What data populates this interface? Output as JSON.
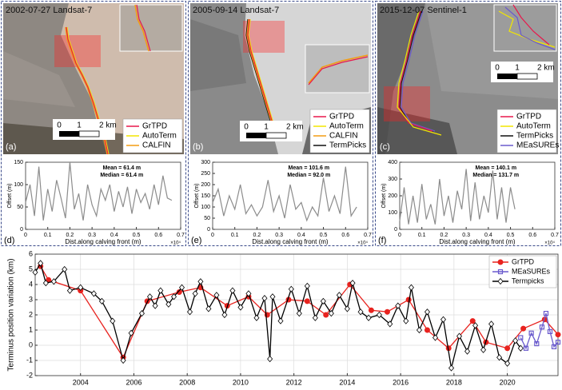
{
  "images": [
    {
      "title": "2002-07-27 Landsat-7",
      "panel": "(a)",
      "scale": [
        "0",
        "1",
        "2 km"
      ],
      "legend": [
        {
          "name": "GrTPD",
          "color": "#e8174b"
        },
        {
          "name": "AutoTerm",
          "color": "#f2e600"
        },
        {
          "name": "CALFIN",
          "color": "#f39c12"
        }
      ]
    },
    {
      "title": "2005-09-14 Landsat-7",
      "panel": "(b)",
      "scale": [
        "0",
        "1",
        "2 km"
      ],
      "legend": [
        {
          "name": "GrTPD",
          "color": "#e8174b"
        },
        {
          "name": "AutoTerm",
          "color": "#f2e600"
        },
        {
          "name": "CALFIN",
          "color": "#f39c12"
        },
        {
          "name": "TermPicks",
          "color": "#111111"
        }
      ]
    },
    {
      "title": "2015-12-07 Sentinel-1",
      "panel": "(c)",
      "scale": [
        "0",
        "1",
        "2 km"
      ],
      "legend": [
        {
          "name": "GrTPD",
          "color": "#e8174b"
        },
        {
          "name": "AutoTerm",
          "color": "#f2e600"
        },
        {
          "name": "TermPicks",
          "color": "#111111"
        },
        {
          "name": "MEaSUREs",
          "color": "#6a5acd"
        }
      ]
    }
  ],
  "chart_data": [
    {
      "type": "line",
      "panel_label": "(d)",
      "x_label": "Dist.along calving front (m)",
      "y_label": "Offset (m)",
      "x_exponent": "×10⁴",
      "annotations": [
        "Mean = 61.4 m",
        "Median = 61.4 m"
      ],
      "color": "#8c8c8c",
      "grid": false,
      "xlim": [
        0,
        0.7
      ],
      "xticks": [
        0,
        0.1,
        0.2,
        0.3,
        0.4,
        0.5,
        0.6,
        0.7
      ],
      "ylim": [
        0,
        150
      ],
      "yticks": [
        0,
        50,
        100,
        150
      ],
      "x": [
        0,
        0.02,
        0.04,
        0.06,
        0.08,
        0.1,
        0.12,
        0.14,
        0.16,
        0.18,
        0.2,
        0.22,
        0.24,
        0.26,
        0.28,
        0.3,
        0.32,
        0.34,
        0.36,
        0.38,
        0.4,
        0.42,
        0.44,
        0.46,
        0.48,
        0.5,
        0.52,
        0.54,
        0.56,
        0.58,
        0.6,
        0.62,
        0.64,
        0.66
      ],
      "values": [
        60,
        100,
        30,
        140,
        20,
        90,
        40,
        110,
        70,
        25,
        150,
        45,
        80,
        20,
        100,
        55,
        30,
        90,
        65,
        100,
        40,
        85,
        50,
        95,
        35,
        90,
        60,
        80,
        45,
        100,
        55,
        120,
        70,
        65
      ]
    },
    {
      "type": "line",
      "panel_label": "(e)",
      "x_label": "Dist.along calving front (m)",
      "y_label": "Offset (m)",
      "x_exponent": "×10⁴",
      "annotations": [
        "Mean = 101.6 m",
        "Median = 92.0 m"
      ],
      "color": "#8c8c8c",
      "grid": false,
      "xlim": [
        0,
        0.7
      ],
      "xticks": [
        0,
        0.1,
        0.2,
        0.3,
        0.4,
        0.5,
        0.6,
        0.7
      ],
      "ylim": [
        0,
        300
      ],
      "yticks": [
        0,
        50,
        100,
        150,
        200,
        250,
        300
      ],
      "x": [
        0,
        0.025,
        0.05,
        0.075,
        0.1,
        0.125,
        0.15,
        0.175,
        0.2,
        0.225,
        0.25,
        0.275,
        0.3,
        0.325,
        0.35,
        0.375,
        0.4,
        0.425,
        0.45,
        0.475,
        0.5,
        0.525,
        0.55,
        0.575,
        0.6,
        0.625,
        0.65
      ],
      "values": [
        120,
        180,
        60,
        150,
        90,
        200,
        70,
        110,
        60,
        100,
        220,
        80,
        150,
        50,
        200,
        90,
        120,
        40,
        100,
        60,
        230,
        80,
        150,
        70,
        280,
        60,
        100
      ]
    },
    {
      "type": "line",
      "panel_label": "(f)",
      "x_label": "Dist.along calving front (m)",
      "y_label": "Offset (m)",
      "x_exponent": "×10⁴",
      "annotations": [
        "Mean = 140.1 m",
        "Median = 131.7 m"
      ],
      "color": "#8c8c8c",
      "grid": false,
      "xlim": [
        0,
        0.7
      ],
      "xticks": [
        0,
        0.1,
        0.2,
        0.3,
        0.4,
        0.5,
        0.6,
        0.7
      ],
      "ylim": [
        0,
        400
      ],
      "yticks": [
        0,
        100,
        200,
        300,
        400
      ],
      "x": [
        0,
        0.02,
        0.04,
        0.06,
        0.08,
        0.1,
        0.12,
        0.14,
        0.16,
        0.18,
        0.2,
        0.22,
        0.24,
        0.26,
        0.28,
        0.3,
        0.32,
        0.34,
        0.36,
        0.38,
        0.4,
        0.42,
        0.44,
        0.46,
        0.48,
        0.5,
        0.52
      ],
      "values": [
        50,
        250,
        30,
        200,
        40,
        270,
        60,
        150,
        30,
        300,
        80,
        200,
        40,
        230,
        120,
        360,
        50,
        280,
        60,
        200,
        100,
        350,
        60,
        250,
        40,
        250,
        120
      ]
    },
    {
      "type": "line",
      "y_label": "Terminus position variation (km)",
      "grid": true,
      "legend": "upper right",
      "xlim": [
        2002.3,
        2021.9
      ],
      "xticks": [
        2004,
        2006,
        2008,
        2010,
        2012,
        2014,
        2016,
        2018,
        2020
      ],
      "ylim": [
        -2,
        6
      ],
      "yticks": [
        -2,
        -1,
        0,
        1,
        2,
        3,
        4,
        5,
        6
      ],
      "series": [
        {
          "name": "GrTPD",
          "color": "#e8231f",
          "marker": "circle",
          "x": [
            2002.5,
            2002.8,
            2004.0,
            2005.6,
            2006.5,
            2007.7,
            2008.5,
            2009.5,
            2010.3,
            2011.0,
            2011.8,
            2012.5,
            2013.2,
            2014.1,
            2014.9,
            2015.5,
            2016.3,
            2017.0,
            2017.8,
            2018.7,
            2019.2,
            2020.0,
            2020.6,
            2021.4,
            2021.9
          ],
          "values": [
            5.2,
            4.3,
            3.6,
            -0.8,
            2.9,
            3.5,
            3.8,
            2.6,
            3.2,
            2.0,
            3.0,
            2.9,
            2.0,
            4.0,
            2.3,
            2.2,
            3.0,
            1.0,
            -0.2,
            1.6,
            0.2,
            -0.2,
            1.1,
            1.7,
            0.7
          ]
        },
        {
          "name": "MEaSUREs",
          "color": "#6a5acd",
          "marker": "square",
          "x": [
            2020.5,
            2020.7,
            2020.9,
            2021.1,
            2021.3,
            2021.45,
            2021.6,
            2021.75,
            2021.9
          ],
          "values": [
            0.5,
            -0.2,
            0.8,
            0.1,
            1.2,
            2.1,
            0.9,
            -0.1,
            0.2
          ]
        },
        {
          "name": "Termpicks",
          "color": "#000000",
          "marker": "diamond",
          "x": [
            2002.3,
            2002.5,
            2002.7,
            2003.0,
            2003.4,
            2003.6,
            2004.0,
            2004.5,
            2004.8,
            2005.2,
            2005.6,
            2005.9,
            2006.3,
            2006.6,
            2006.8,
            2007.0,
            2007.3,
            2007.5,
            2007.8,
            2008.1,
            2008.3,
            2008.5,
            2008.8,
            2009.1,
            2009.4,
            2009.7,
            2010.0,
            2010.3,
            2010.6,
            2010.9,
            2011.1,
            2011.2,
            2011.5,
            2011.9,
            2012.2,
            2012.5,
            2012.8,
            2013.1,
            2013.4,
            2013.7,
            2014.0,
            2014.2,
            2014.5,
            2014.8,
            2015.2,
            2015.6,
            2015.9,
            2016.2,
            2016.4,
            2016.7,
            2017.0,
            2017.3,
            2017.6,
            2017.9,
            2018.2,
            2018.5,
            2018.8,
            2019.1,
            2019.4,
            2019.7,
            2020.0,
            2020.3,
            2020.5
          ],
          "values": [
            4.8,
            5.4,
            4.1,
            4.2,
            5.0,
            3.6,
            3.8,
            3.4,
            2.9,
            1.6,
            -1.0,
            0.8,
            2.1,
            3.2,
            2.6,
            3.6,
            2.7,
            3.2,
            3.8,
            2.2,
            3.4,
            4.2,
            2.4,
            3.3,
            2.0,
            3.6,
            2.5,
            3.4,
            1.8,
            3.1,
            -0.9,
            3.2,
            1.6,
            3.7,
            2.1,
            3.9,
            1.8,
            2.9,
            2.1,
            3.3,
            2.4,
            4.1,
            2.2,
            1.8,
            2.0,
            1.4,
            2.6,
            1.6,
            3.8,
            1.0,
            2.2,
            0.5,
            1.7,
            -1.5,
            0.6,
            -0.4,
            1.3,
            -0.3,
            1.4,
            -0.8,
            -1.2,
            0.3,
            -0.2
          ]
        }
      ]
    }
  ]
}
